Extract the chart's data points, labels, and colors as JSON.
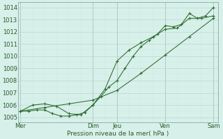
{
  "background_color": "#d7f0ea",
  "grid_major_color": "#b8d8d0",
  "grid_minor_color": "#cce8e2",
  "line_color": "#2d6a2d",
  "title": "Pression niveau de la mer( hPa )",
  "ylim": [
    1004.6,
    1014.4
  ],
  "yticks": [
    1005,
    1006,
    1007,
    1008,
    1009,
    1010,
    1011,
    1012,
    1013,
    1014
  ],
  "xlim": [
    -0.1,
    8.2
  ],
  "x_day_labels": [
    "Mer",
    "Dim",
    "Jeu",
    "Ven",
    "Sam"
  ],
  "x_day_positions": [
    0,
    3.0,
    4.0,
    6.0,
    8.0
  ],
  "series1_x": [
    0,
    0.33,
    0.67,
    1.0,
    1.33,
    1.67,
    2.0,
    2.33,
    2.67,
    3.0,
    3.33,
    3.67,
    4.0,
    4.33,
    4.67,
    5.0,
    5.33,
    5.67,
    6.0,
    6.33,
    6.67,
    7.0,
    7.33,
    7.67,
    8.0
  ],
  "series1_y": [
    1005.5,
    1005.5,
    1005.6,
    1005.6,
    1005.3,
    1005.1,
    1005.1,
    1005.2,
    1005.4,
    1006.0,
    1006.7,
    1007.5,
    1008.0,
    1009.0,
    1010.0,
    1010.8,
    1011.3,
    1011.8,
    1012.5,
    1012.4,
    1012.6,
    1013.5,
    1013.1,
    1013.3,
    1014.0
  ],
  "series2_x": [
    0,
    0.5,
    1.0,
    1.5,
    2.0,
    2.5,
    3.0,
    3.5,
    4.0,
    4.5,
    5.0,
    5.5,
    6.0,
    6.5,
    7.0,
    7.5,
    8.0
  ],
  "series2_y": [
    1005.5,
    1006.0,
    1006.1,
    1005.9,
    1005.3,
    1005.2,
    1006.0,
    1007.3,
    1009.6,
    1010.5,
    1011.1,
    1011.6,
    1012.2,
    1012.3,
    1013.1,
    1013.1,
    1013.3
  ],
  "series3_x": [
    0,
    1.0,
    2.0,
    3.0,
    4.0,
    5.0,
    6.0,
    7.0,
    8.0
  ],
  "series3_y": [
    1005.5,
    1005.8,
    1006.1,
    1006.4,
    1007.2,
    1008.6,
    1010.1,
    1011.6,
    1013.1
  ],
  "lw": 0.75,
  "ms": 2.5,
  "mew": 0.8,
  "title_fontsize": 6.5,
  "tick_fontsize": 6.0
}
